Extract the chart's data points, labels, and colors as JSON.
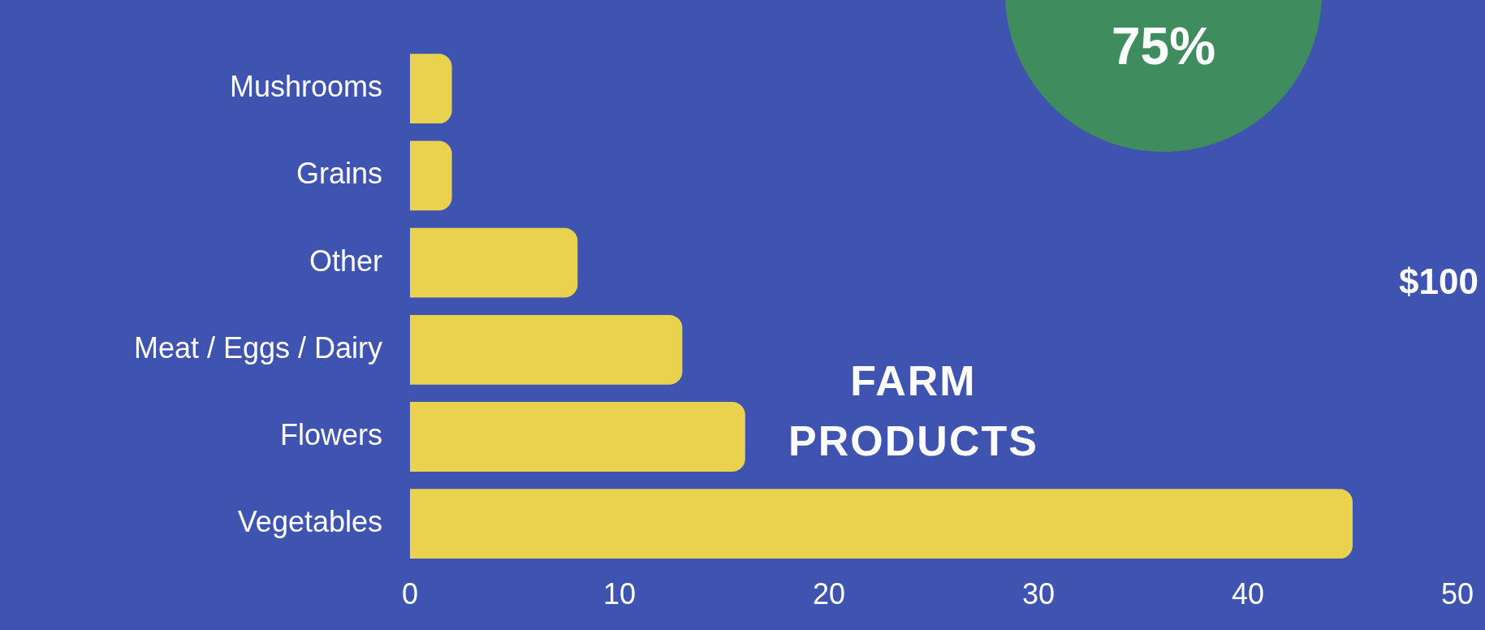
{
  "chart_data": {
    "type": "bar",
    "orientation": "horizontal",
    "title": "FARM PRODUCTS",
    "categories": [
      "Mushrooms",
      "Grains",
      "Other",
      "Meat / Eggs / Dairy",
      "Flowers",
      "Vegetables"
    ],
    "values": [
      2,
      2,
      8,
      13,
      16,
      45
    ],
    "color": "#e8d24e",
    "xlim": [
      0,
      50
    ],
    "xticks": [
      0,
      10,
      20,
      30,
      40,
      50
    ],
    "annotations": [
      "75%",
      "$100"
    ]
  }
}
